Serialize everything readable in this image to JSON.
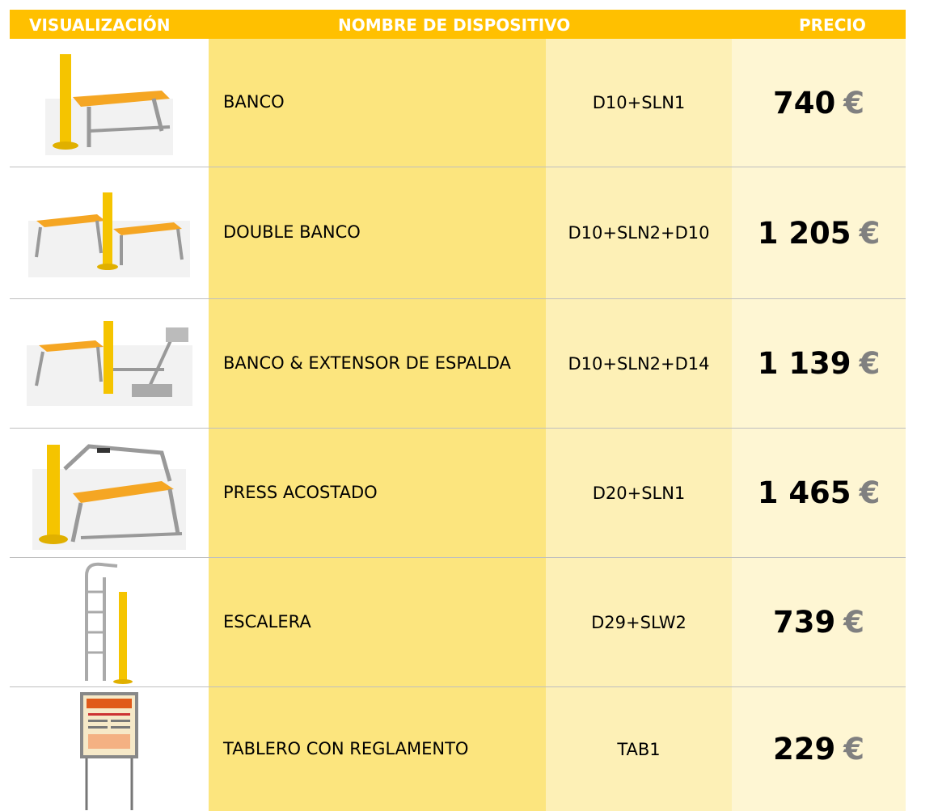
{
  "table": {
    "header": [
      "VISUALIZACIÓN",
      "NOMBRE DE DISPOSITIVO",
      "PRECIO"
    ],
    "currency": "€",
    "rows": [
      {
        "name": "BANCO",
        "code": "D10+SLN1",
        "price": "740"
      },
      {
        "name": "DOUBLE BANCO",
        "code": "D10+SLN2+D10",
        "price": "1 205"
      },
      {
        "name": "BANCO & EXTENSOR DE ESPALDA",
        "code": "D10+SLN2+D14",
        "price": "1 139"
      },
      {
        "name": "PRESS ACOSTADO",
        "code": "D20+SLN1",
        "price": "1 465"
      },
      {
        "name": "ESCALERA",
        "code": "D29+SLW2",
        "price": "739"
      },
      {
        "name": "TABLERO CON REGLAMENTO",
        "code": "TAB1",
        "price": "229"
      }
    ]
  }
}
